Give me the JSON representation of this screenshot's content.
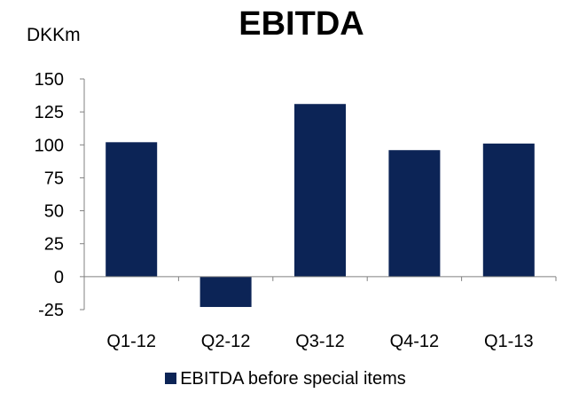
{
  "chart_data": {
    "type": "bar",
    "title": "EBITDA",
    "ylabel": "DKKm",
    "xlabel": "",
    "categories": [
      "Q1-12",
      "Q2-12",
      "Q3-12",
      "Q4-12",
      "Q1-13"
    ],
    "series": [
      {
        "name": "EBITDA before special items",
        "values": [
          102,
          -23,
          131,
          96,
          101
        ],
        "color": "#0c2456"
      }
    ],
    "ylim": [
      -25,
      150
    ],
    "yticks": [
      150,
      125,
      100,
      75,
      50,
      25,
      0,
      -25
    ],
    "grid": false,
    "legend_position": "bottom"
  }
}
